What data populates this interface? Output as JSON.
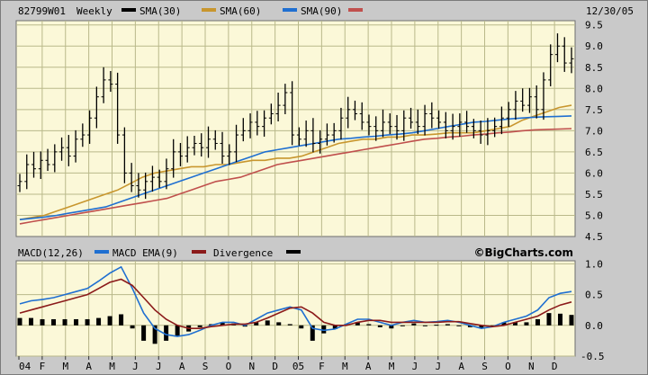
{
  "header": {
    "symbol": "82799W01",
    "period": "Weekly",
    "date": "12/30/05",
    "legend": [
      {
        "label": "SMA(30)",
        "color": "#000000"
      },
      {
        "label": "SMA(60)",
        "color": "#c8962e"
      },
      {
        "label": "SMA(90)",
        "color": "#1f6fd1"
      },
      {
        "label": "",
        "color": "#c0504d"
      }
    ]
  },
  "macd_header": {
    "legend": [
      {
        "label": "MACD(12,26)",
        "color": "#1f6fd1"
      },
      {
        "label": "MACD EMA(9)",
        "color": "#8b1a1a"
      },
      {
        "label": "Divergence",
        "color": "#000000"
      }
    ],
    "watermark": "©BigCharts.com"
  },
  "chart_data": [
    {
      "type": "ohlc",
      "title": "82799W01 Weekly",
      "x_labels": [
        "04",
        "F",
        "M",
        "A",
        "M",
        "J",
        "J",
        "A",
        "S",
        "O",
        "N",
        "D",
        "05",
        "F",
        "M",
        "A",
        "M",
        "J",
        "J",
        "A",
        "S",
        "O",
        "N",
        "D"
      ],
      "y_ticks": [
        4.5,
        5.0,
        5.5,
        6.0,
        6.5,
        7.0,
        7.5,
        8.0,
        8.5,
        9.0,
        9.5
      ],
      "ylim": [
        4.5,
        9.6
      ],
      "grid": true,
      "close_approx": [
        5.8,
        6.2,
        6.1,
        6.3,
        6.2,
        6.5,
        6.6,
        6.4,
        6.8,
        6.9,
        7.3,
        7.8,
        8.2,
        8.1,
        6.9,
        6.0,
        5.7,
        5.6,
        5.8,
        5.9,
        5.8,
        6.1,
        6.5,
        6.4,
        6.6,
        6.7,
        6.6,
        6.8,
        6.7,
        6.4,
        6.5,
        6.9,
        7.0,
        7.2,
        7.1,
        7.3,
        7.4,
        7.6,
        7.9,
        6.9,
        6.8,
        7.0,
        6.7,
        6.8,
        6.9,
        7.0,
        7.3,
        7.5,
        7.4,
        7.2,
        7.1,
        7.0,
        7.2,
        7.1,
        7.0,
        7.3,
        7.2,
        7.1,
        7.4,
        7.3,
        7.2,
        7.0,
        7.1,
        7.2,
        7.1,
        7.0,
        6.9,
        7.0,
        7.1,
        7.3,
        7.5,
        7.7,
        7.6,
        7.8,
        7.5,
        8.2,
        8.8,
        9.0,
        8.6,
        8.7
      ],
      "series": [
        {
          "name": "SMA(30)",
          "values": [
            4.9,
            4.95,
            5.0,
            5.1,
            5.2,
            5.3,
            5.4,
            5.5,
            5.6,
            5.75,
            5.9,
            6.0,
            6.05,
            6.1,
            6.15,
            6.15,
            6.2,
            6.2,
            6.25,
            6.3,
            6.3,
            6.35,
            6.35,
            6.4,
            6.5,
            6.6,
            6.7,
            6.75,
            6.8,
            6.8,
            6.85,
            6.85,
            6.9,
            6.9,
            6.92,
            6.95,
            6.95,
            6.95,
            7.0,
            7.05,
            7.1,
            7.25,
            7.35,
            7.45,
            7.55,
            7.6
          ]
        },
        {
          "name": "SMA(60)",
          "values": [
            4.9,
            4.93,
            4.96,
            5.0,
            5.05,
            5.1,
            5.15,
            5.2,
            5.3,
            5.4,
            5.5,
            5.6,
            5.7,
            5.8,
            5.9,
            6.0,
            6.1,
            6.2,
            6.3,
            6.4,
            6.5,
            6.55,
            6.6,
            6.65,
            6.7,
            6.75,
            6.8,
            6.82,
            6.85,
            6.87,
            6.9,
            6.92,
            6.95,
            7.0,
            7.05,
            7.1,
            7.15,
            7.2,
            7.22,
            7.25,
            7.28,
            7.3,
            7.32,
            7.33,
            7.34,
            7.35
          ]
        },
        {
          "name": "SMA(90)",
          "values": [
            4.8,
            4.85,
            4.9,
            4.95,
            5.0,
            5.05,
            5.1,
            5.15,
            5.2,
            5.25,
            5.3,
            5.35,
            5.4,
            5.5,
            5.6,
            5.7,
            5.8,
            5.85,
            5.9,
            6.0,
            6.1,
            6.2,
            6.25,
            6.3,
            6.35,
            6.4,
            6.45,
            6.5,
            6.55,
            6.6,
            6.65,
            6.7,
            6.75,
            6.8,
            6.82,
            6.85,
            6.87,
            6.9,
            6.92,
            6.95,
            6.97,
            7.0,
            7.02,
            7.03,
            7.04,
            7.05
          ]
        }
      ]
    },
    {
      "type": "line",
      "title": "MACD(12,26)",
      "y_ticks": [
        -0.5,
        0.0,
        0.5,
        1.0
      ],
      "ylim": [
        -0.5,
        1.05
      ],
      "grid": true,
      "series": [
        {
          "name": "MACD(12,26)",
          "values": [
            0.35,
            0.4,
            0.42,
            0.45,
            0.5,
            0.55,
            0.6,
            0.72,
            0.85,
            0.95,
            0.6,
            0.2,
            -0.05,
            -0.15,
            -0.18,
            -0.15,
            -0.08,
            0.0,
            0.05,
            0.05,
            0.0,
            0.1,
            0.2,
            0.25,
            0.3,
            0.25,
            -0.05,
            -0.08,
            -0.06,
            0.02,
            0.1,
            0.1,
            0.05,
            0.0,
            0.05,
            0.08,
            0.05,
            0.06,
            0.08,
            0.05,
            0.0,
            -0.05,
            -0.02,
            0.05,
            0.1,
            0.15,
            0.25,
            0.45,
            0.52,
            0.55
          ]
        },
        {
          "name": "MACD EMA(9)",
          "values": [
            0.2,
            0.25,
            0.3,
            0.35,
            0.4,
            0.45,
            0.5,
            0.6,
            0.7,
            0.75,
            0.65,
            0.45,
            0.25,
            0.1,
            0.0,
            -0.05,
            -0.05,
            -0.02,
            0.0,
            0.02,
            0.02,
            0.05,
            0.12,
            0.2,
            0.28,
            0.3,
            0.2,
            0.05,
            0.0,
            0.0,
            0.05,
            0.08,
            0.08,
            0.05,
            0.05,
            0.05,
            0.05,
            0.05,
            0.06,
            0.06,
            0.03,
            0.0,
            -0.02,
            0.0,
            0.05,
            0.1,
            0.15,
            0.25,
            0.33,
            0.38
          ]
        },
        {
          "name": "Divergence",
          "values": [
            0.12,
            0.12,
            0.1,
            0.1,
            0.1,
            0.1,
            0.1,
            0.12,
            0.15,
            0.18,
            -0.05,
            -0.25,
            -0.3,
            -0.25,
            -0.18,
            -0.1,
            -0.03,
            0.02,
            0.05,
            0.03,
            -0.02,
            0.05,
            0.08,
            0.05,
            0.02,
            -0.05,
            -0.25,
            -0.13,
            -0.06,
            0.02,
            0.05,
            0.02,
            -0.03,
            -0.05,
            0.0,
            0.03,
            0.0,
            0.01,
            0.02,
            -0.01,
            -0.03,
            -0.05,
            0.0,
            0.05,
            0.05,
            0.05,
            0.1,
            0.2,
            0.19,
            0.17
          ]
        }
      ]
    }
  ]
}
